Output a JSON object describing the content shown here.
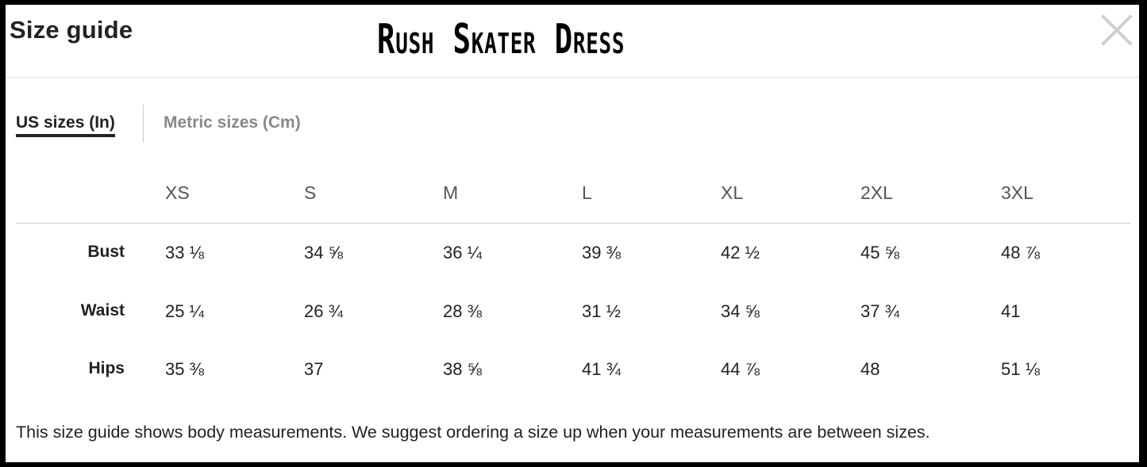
{
  "header": {
    "title": "Size guide",
    "product_name": "Rush Skater Dress",
    "close_icon": "close-icon"
  },
  "tabs": [
    {
      "label": "US sizes (In)",
      "active": true
    },
    {
      "label": "Metric sizes (Cm)",
      "active": false
    }
  ],
  "table": {
    "columns": [
      "XS",
      "S",
      "M",
      "L",
      "XL",
      "2XL",
      "3XL"
    ],
    "rows": [
      {
        "label": "Bust",
        "values": [
          "33 ⅛",
          "34 ⅝",
          "36 ¼",
          "39 ⅜",
          "42 ½",
          "45 ⅝",
          "48 ⅞"
        ]
      },
      {
        "label": "Waist",
        "values": [
          "25 ¼",
          "26 ¾",
          "28 ⅜",
          "31 ½",
          "34 ⅝",
          "37 ¾",
          "41"
        ]
      },
      {
        "label": "Hips",
        "values": [
          "35 ⅜",
          "37",
          "38 ⅝",
          "41 ¾",
          "44 ⅞",
          "48",
          "51 ⅛"
        ]
      }
    ]
  },
  "footnote": "This size guide shows body measurements. We suggest ordering a size up when your measurements are between sizes."
}
